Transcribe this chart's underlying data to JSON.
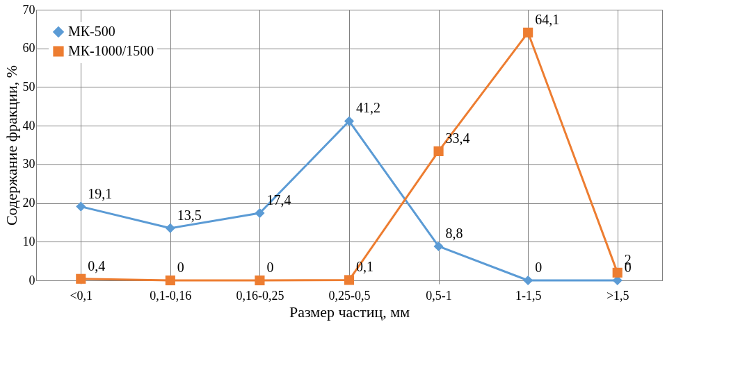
{
  "chart_data": {
    "type": "line",
    "xlabel": "Размер частиц, мм",
    "ylabel": "Содержание фракции, %",
    "categories": [
      "<0,1",
      "0,1-0,16",
      "0,16-0,25",
      "0,25-0,5",
      "0,5-1",
      "1-1,5",
      ">1,5"
    ],
    "series": [
      {
        "name": "МК-500",
        "color": "#5b9bd5",
        "marker": "diamond",
        "values": [
          19.1,
          13.5,
          17.4,
          41.2,
          8.8,
          0,
          0
        ],
        "value_labels": [
          "19,1",
          "13,5",
          "17,4",
          "41,2",
          "8,8",
          "0",
          "0"
        ]
      },
      {
        "name": "МК-1000/1500",
        "color": "#ed7d31",
        "marker": "square",
        "values": [
          0.4,
          0,
          0,
          0.1,
          33.4,
          64.1,
          2
        ],
        "value_labels": [
          "0,4",
          "0",
          "0",
          "0,1",
          "33,4",
          "64,1",
          "2"
        ]
      }
    ],
    "ylim": [
      0,
      70
    ],
    "yticks": [
      0,
      10,
      20,
      30,
      40,
      50,
      60,
      70
    ],
    "grid": true,
    "legend": "top left"
  }
}
